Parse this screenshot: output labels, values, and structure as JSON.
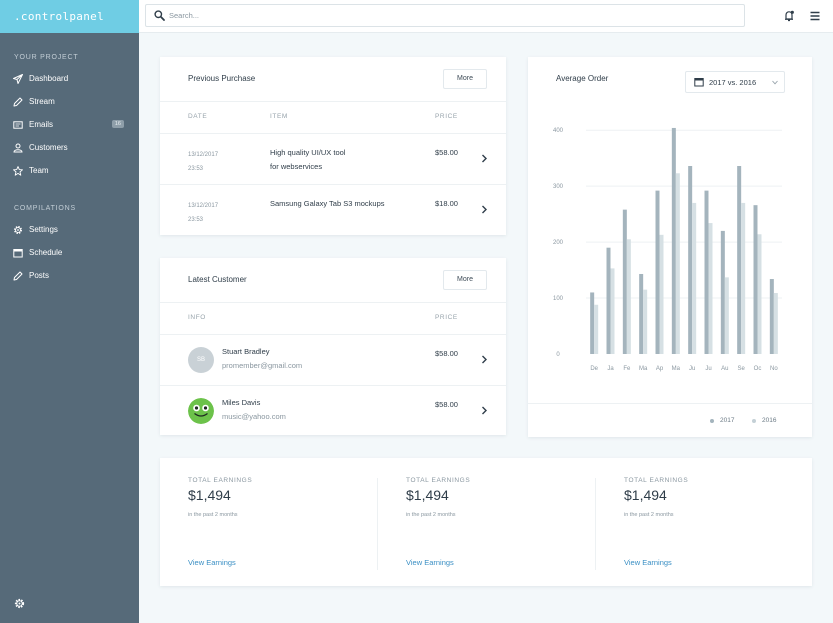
{
  "brand": ".controlpanel",
  "sidebar": {
    "project_title": "YOUR PROJECT",
    "project_items": [
      {
        "label": "Dashboard",
        "icon": "paper-plane-icon"
      },
      {
        "label": "Stream",
        "icon": "pencil-icon"
      },
      {
        "label": "Emails",
        "icon": "mail-icon",
        "badge": "16"
      },
      {
        "label": "Customers",
        "icon": "users-icon"
      },
      {
        "label": "Team",
        "icon": "star-icon"
      }
    ],
    "compilations_title": "COMPILATIONS",
    "compilation_items": [
      {
        "label": "Settings",
        "icon": "gear-icon"
      },
      {
        "label": "Schedule",
        "icon": "calendar-icon"
      },
      {
        "label": "Posts",
        "icon": "pencil-icon"
      }
    ]
  },
  "search": {
    "placeholder": "Search..."
  },
  "previous_purchase": {
    "title": "Previous Purchase",
    "more_label": "More",
    "headers": {
      "date": "DATE",
      "item": "ITEM",
      "price": "PRICE"
    },
    "rows": [
      {
        "date": "13/12/2017",
        "time": "23:53",
        "item_line1": "High quality UI/UX tool",
        "item_line2": "for webservices",
        "price": "$58.00"
      },
      {
        "date": "13/12/2017",
        "time": "23:53",
        "item_line1": "Samsung Galaxy Tab S3 mockups",
        "item_line2": "",
        "price": "$18.00"
      }
    ]
  },
  "latest_customer": {
    "title": "Latest Customer",
    "more_label": "More",
    "headers": {
      "info": "INFO",
      "price": "PRICE"
    },
    "rows": [
      {
        "initials": "SB",
        "name": "Stuart Bradley",
        "email": "promember@gmail.com",
        "price": "$58.00"
      },
      {
        "initials": "",
        "name": "Miles Davis",
        "email": "music@yahoo.com",
        "price": "$58.00"
      }
    ]
  },
  "average_order": {
    "title": "Average Order",
    "select_value": "2017 vs. 2016"
  },
  "chart_data": {
    "type": "bar",
    "title": "Average Order",
    "categories": [
      "De",
      "Ja",
      "Fe",
      "Ma",
      "Ap",
      "Ma",
      "Ju",
      "Ju",
      "Au",
      "Se",
      "Oc",
      "No"
    ],
    "series": [
      {
        "name": "2017",
        "values": [
          110,
          190,
          258,
          143,
          292,
          404,
          336,
          292,
          220,
          336,
          266,
          134
        ],
        "color": "#a4b4bd"
      },
      {
        "name": "2016",
        "values": [
          88,
          153,
          205,
          115,
          213,
          323,
          270,
          234,
          137,
          270,
          214,
          109
        ],
        "color": "#d6e0e4"
      }
    ],
    "yticks": [
      0,
      100,
      200,
      300,
      400
    ],
    "ylim": [
      0,
      420
    ],
    "grid": true,
    "legend": "bottom-right"
  },
  "earnings": [
    {
      "label": "TOTAL EARNINGS",
      "value": "$1,494",
      "sub": "in the past 2 months",
      "link": "View Earnings"
    },
    {
      "label": "TOTAL EARNINGS",
      "value": "$1,494",
      "sub": "in the past 2 months",
      "link": "View Earnings"
    },
    {
      "label": "TOTAL EARNINGS",
      "value": "$1,494",
      "sub": "in the past 2 months",
      "link": "View Earnings"
    }
  ],
  "colors": {
    "brand": "#6fcde4",
    "sidebar": "#566a79",
    "link": "#3a8fc4",
    "frog": "#6cc24a"
  }
}
